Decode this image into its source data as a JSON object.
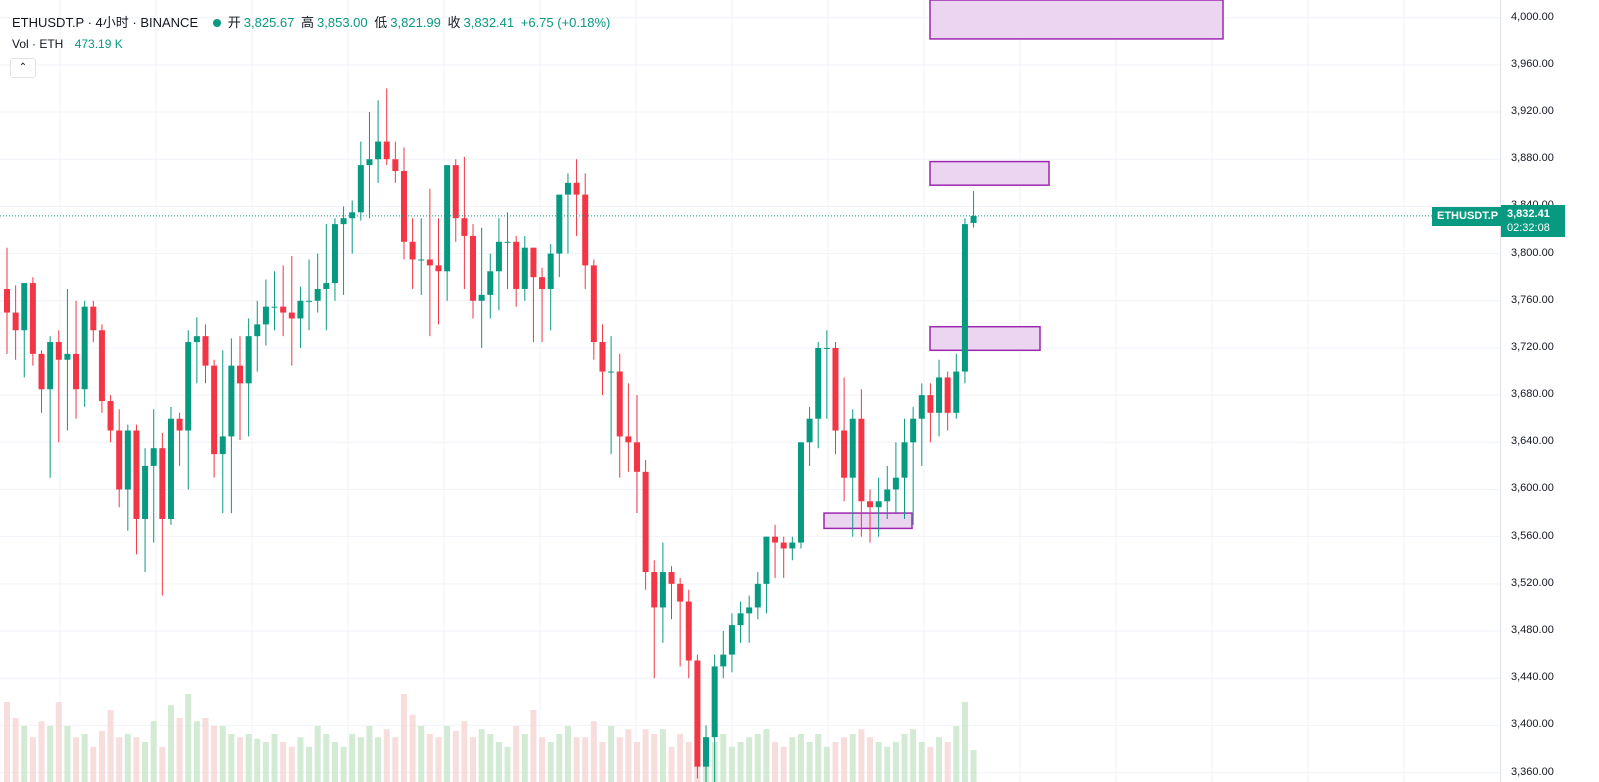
{
  "header": {
    "symbol": "ETHUSDT.P · 4小时 · BINANCE",
    "open_label": "开",
    "open": "3,825.67",
    "high_label": "高",
    "high": "3,853.00",
    "low_label": "低",
    "low": "3,821.99",
    "close_label": "收",
    "close": "3,832.41",
    "change": "+6.75 (+0.18%)"
  },
  "volume": {
    "label": "Vol · ETH",
    "value": "473.19 K"
  },
  "collapse_icon": "chevron-up-icon",
  "price_tag": {
    "symbol": "ETHUSDT.P",
    "price": "3,832.41",
    "countdown": "02:32:08"
  },
  "colors": {
    "up": "#089981",
    "down": "#f23645",
    "vol_up": "#c8e6c9",
    "vol_down": "#f6d5d5",
    "zone_fill": "#ecd5f0",
    "zone_border": "#9c27b0"
  },
  "chart_data": {
    "type": "candlestick",
    "y_axis": {
      "ticks": [
        "4,000.00",
        "3,960.00",
        "3,920.00",
        "3,880.00",
        "3,840.00",
        "3,800.00",
        "3,760.00",
        "3,720.00",
        "3,680.00",
        "3,640.00",
        "3,600.00",
        "3,560.00",
        "3,520.00",
        "3,480.00",
        "3,440.00",
        "3,400.00",
        "3,360.00"
      ],
      "tick_values": [
        4000,
        3960,
        3920,
        3880,
        3840,
        3800,
        3760,
        3720,
        3680,
        3640,
        3600,
        3560,
        3520,
        3480,
        3440,
        3400,
        3360
      ],
      "range": [
        3352,
        4015
      ]
    },
    "candles": [
      {
        "o": 3770,
        "h": 3805,
        "l": 3715,
        "c": 3750,
        "v": 0.5
      },
      {
        "o": 3750,
        "h": 3773,
        "l": 3710,
        "c": 3735,
        "v": 0.4
      },
      {
        "o": 3735,
        "h": 3772,
        "l": 3695,
        "c": 3775,
        "v": 0.35
      },
      {
        "o": 3775,
        "h": 3780,
        "l": 3705,
        "c": 3715,
        "v": 0.28
      },
      {
        "o": 3715,
        "h": 3718,
        "l": 3665,
        "c": 3685,
        "v": 0.38
      },
      {
        "o": 3685,
        "h": 3730,
        "l": 3610,
        "c": 3725,
        "v": 0.35
      },
      {
        "o": 3725,
        "h": 3735,
        "l": 3640,
        "c": 3710,
        "v": 0.5
      },
      {
        "o": 3710,
        "h": 3770,
        "l": 3650,
        "c": 3715,
        "v": 0.35
      },
      {
        "o": 3715,
        "h": 3760,
        "l": 3660,
        "c": 3685,
        "v": 0.28
      },
      {
        "o": 3685,
        "h": 3760,
        "l": 3670,
        "c": 3755,
        "v": 0.3
      },
      {
        "o": 3755,
        "h": 3760,
        "l": 3725,
        "c": 3735,
        "v": 0.22
      },
      {
        "o": 3735,
        "h": 3740,
        "l": 3665,
        "c": 3675,
        "v": 0.32
      },
      {
        "o": 3675,
        "h": 3680,
        "l": 3640,
        "c": 3650,
        "v": 0.45
      },
      {
        "o": 3650,
        "h": 3668,
        "l": 3585,
        "c": 3600,
        "v": 0.28
      },
      {
        "o": 3600,
        "h": 3655,
        "l": 3565,
        "c": 3650,
        "v": 0.3
      },
      {
        "o": 3650,
        "h": 3655,
        "l": 3545,
        "c": 3575,
        "v": 0.28
      },
      {
        "o": 3575,
        "h": 3635,
        "l": 3530,
        "c": 3620,
        "v": 0.25
      },
      {
        "o": 3620,
        "h": 3668,
        "l": 3555,
        "c": 3635,
        "v": 0.38
      },
      {
        "o": 3635,
        "h": 3648,
        "l": 3510,
        "c": 3575,
        "v": 0.22
      },
      {
        "o": 3575,
        "h": 3670,
        "l": 3570,
        "c": 3660,
        "v": 0.48
      },
      {
        "o": 3660,
        "h": 3665,
        "l": 3620,
        "c": 3650,
        "v": 0.4
      },
      {
        "o": 3650,
        "h": 3735,
        "l": 3600,
        "c": 3725,
        "v": 0.55
      },
      {
        "o": 3725,
        "h": 3746,
        "l": 3690,
        "c": 3730,
        "v": 0.38
      },
      {
        "o": 3730,
        "h": 3740,
        "l": 3690,
        "c": 3705,
        "v": 0.4
      },
      {
        "o": 3705,
        "h": 3710,
        "l": 3610,
        "c": 3630,
        "v": 0.35
      },
      {
        "o": 3630,
        "h": 3718,
        "l": 3580,
        "c": 3645,
        "v": 0.35
      },
      {
        "o": 3645,
        "h": 3728,
        "l": 3580,
        "c": 3705,
        "v": 0.3
      },
      {
        "o": 3705,
        "h": 3730,
        "l": 3642,
        "c": 3690,
        "v": 0.28
      },
      {
        "o": 3690,
        "h": 3745,
        "l": 3645,
        "c": 3730,
        "v": 0.3
      },
      {
        "o": 3730,
        "h": 3760,
        "l": 3700,
        "c": 3740,
        "v": 0.27
      },
      {
        "o": 3740,
        "h": 3778,
        "l": 3722,
        "c": 3755,
        "v": 0.25
      },
      {
        "o": 3755,
        "h": 3785,
        "l": 3735,
        "c": 3755,
        "v": 0.3
      },
      {
        "o": 3755,
        "h": 3790,
        "l": 3730,
        "c": 3750,
        "v": 0.25
      },
      {
        "o": 3750,
        "h": 3798,
        "l": 3705,
        "c": 3745,
        "v": 0.22
      },
      {
        "o": 3745,
        "h": 3772,
        "l": 3720,
        "c": 3760,
        "v": 0.28
      },
      {
        "o": 3760,
        "h": 3795,
        "l": 3735,
        "c": 3760,
        "v": 0.22
      },
      {
        "o": 3760,
        "h": 3800,
        "l": 3750,
        "c": 3770,
        "v": 0.35
      },
      {
        "o": 3770,
        "h": 3825,
        "l": 3735,
        "c": 3775,
        "v": 0.3
      },
      {
        "o": 3775,
        "h": 3830,
        "l": 3760,
        "c": 3825,
        "v": 0.25
      },
      {
        "o": 3825,
        "h": 3840,
        "l": 3765,
        "c": 3830,
        "v": 0.22
      },
      {
        "o": 3830,
        "h": 3845,
        "l": 3800,
        "c": 3835,
        "v": 0.3
      },
      {
        "o": 3835,
        "h": 3895,
        "l": 3828,
        "c": 3875,
        "v": 0.28
      },
      {
        "o": 3875,
        "h": 3920,
        "l": 3830,
        "c": 3880,
        "v": 0.35
      },
      {
        "o": 3880,
        "h": 3930,
        "l": 3860,
        "c": 3895,
        "v": 0.28
      },
      {
        "o": 3895,
        "h": 3940,
        "l": 3875,
        "c": 3880,
        "v": 0.33
      },
      {
        "o": 3880,
        "h": 3895,
        "l": 3860,
        "c": 3870,
        "v": 0.28
      },
      {
        "o": 3870,
        "h": 3890,
        "l": 3795,
        "c": 3810,
        "v": 0.55
      },
      {
        "o": 3810,
        "h": 3830,
        "l": 3770,
        "c": 3795,
        "v": 0.42
      },
      {
        "o": 3795,
        "h": 3830,
        "l": 3765,
        "c": 3795,
        "v": 0.35
      },
      {
        "o": 3795,
        "h": 3855,
        "l": 3730,
        "c": 3790,
        "v": 0.3
      },
      {
        "o": 3790,
        "h": 3830,
        "l": 3740,
        "c": 3785,
        "v": 0.28
      },
      {
        "o": 3785,
        "h": 3875,
        "l": 3760,
        "c": 3875,
        "v": 0.35
      },
      {
        "o": 3875,
        "h": 3880,
        "l": 3810,
        "c": 3830,
        "v": 0.32
      },
      {
        "o": 3830,
        "h": 3882,
        "l": 3770,
        "c": 3815,
        "v": 0.38
      },
      {
        "o": 3815,
        "h": 3825,
        "l": 3745,
        "c": 3760,
        "v": 0.28
      },
      {
        "o": 3760,
        "h": 3822,
        "l": 3720,
        "c": 3765,
        "v": 0.33
      },
      {
        "o": 3765,
        "h": 3800,
        "l": 3745,
        "c": 3785,
        "v": 0.3
      },
      {
        "o": 3785,
        "h": 3830,
        "l": 3752,
        "c": 3810,
        "v": 0.25
      },
      {
        "o": 3810,
        "h": 3835,
        "l": 3770,
        "c": 3810,
        "v": 0.22
      },
      {
        "o": 3810,
        "h": 3815,
        "l": 3755,
        "c": 3770,
        "v": 0.35
      },
      {
        "o": 3770,
        "h": 3815,
        "l": 3760,
        "c": 3805,
        "v": 0.3
      },
      {
        "o": 3805,
        "h": 3805,
        "l": 3725,
        "c": 3780,
        "v": 0.45
      },
      {
        "o": 3780,
        "h": 3788,
        "l": 3725,
        "c": 3770,
        "v": 0.28
      },
      {
        "o": 3770,
        "h": 3808,
        "l": 3735,
        "c": 3800,
        "v": 0.25
      },
      {
        "o": 3800,
        "h": 3845,
        "l": 3780,
        "c": 3850,
        "v": 0.3
      },
      {
        "o": 3850,
        "h": 3868,
        "l": 3800,
        "c": 3860,
        "v": 0.35
      },
      {
        "o": 3860,
        "h": 3880,
        "l": 3815,
        "c": 3850,
        "v": 0.28
      },
      {
        "o": 3850,
        "h": 3868,
        "l": 3770,
        "c": 3790,
        "v": 0.28
      },
      {
        "o": 3790,
        "h": 3795,
        "l": 3710,
        "c": 3725,
        "v": 0.38
      },
      {
        "o": 3725,
        "h": 3740,
        "l": 3680,
        "c": 3700,
        "v": 0.25
      },
      {
        "o": 3700,
        "h": 3730,
        "l": 3630,
        "c": 3700,
        "v": 0.35
      },
      {
        "o": 3700,
        "h": 3715,
        "l": 3610,
        "c": 3645,
        "v": 0.28
      },
      {
        "o": 3645,
        "h": 3690,
        "l": 3615,
        "c": 3640,
        "v": 0.33
      },
      {
        "o": 3640,
        "h": 3680,
        "l": 3580,
        "c": 3615,
        "v": 0.25
      },
      {
        "o": 3615,
        "h": 3625,
        "l": 3515,
        "c": 3530,
        "v": 0.33
      },
      {
        "o": 3530,
        "h": 3540,
        "l": 3440,
        "c": 3500,
        "v": 0.3
      },
      {
        "o": 3500,
        "h": 3555,
        "l": 3470,
        "c": 3530,
        "v": 0.33
      },
      {
        "o": 3530,
        "h": 3535,
        "l": 3490,
        "c": 3520,
        "v": 0.22
      },
      {
        "o": 3520,
        "h": 3525,
        "l": 3450,
        "c": 3505,
        "v": 0.3
      },
      {
        "o": 3505,
        "h": 3515,
        "l": 3440,
        "c": 3455,
        "v": 0.25
      },
      {
        "o": 3455,
        "h": 3460,
        "l": 3355,
        "c": 3365,
        "v": 0.28
      },
      {
        "o": 3365,
        "h": 3400,
        "l": 3340,
        "c": 3390,
        "v": 0.22
      },
      {
        "o": 3390,
        "h": 3460,
        "l": 3340,
        "c": 3450,
        "v": 0.25
      },
      {
        "o": 3450,
        "h": 3480,
        "l": 3440,
        "c": 3460,
        "v": 0.3
      },
      {
        "o": 3460,
        "h": 3495,
        "l": 3445,
        "c": 3485,
        "v": 0.22
      },
      {
        "o": 3485,
        "h": 3505,
        "l": 3470,
        "c": 3495,
        "v": 0.25
      },
      {
        "o": 3495,
        "h": 3510,
        "l": 3470,
        "c": 3500,
        "v": 0.28
      },
      {
        "o": 3500,
        "h": 3530,
        "l": 3490,
        "c": 3520,
        "v": 0.3
      },
      {
        "o": 3520,
        "h": 3560,
        "l": 3495,
        "c": 3560,
        "v": 0.33
      },
      {
        "o": 3560,
        "h": 3570,
        "l": 3525,
        "c": 3555,
        "v": 0.25
      },
      {
        "o": 3555,
        "h": 3560,
        "l": 3525,
        "c": 3550,
        "v": 0.22
      },
      {
        "o": 3550,
        "h": 3560,
        "l": 3540,
        "c": 3555,
        "v": 0.28
      },
      {
        "o": 3555,
        "h": 3640,
        "l": 3550,
        "c": 3640,
        "v": 0.3
      },
      {
        "o": 3640,
        "h": 3670,
        "l": 3620,
        "c": 3660,
        "v": 0.25
      },
      {
        "o": 3660,
        "h": 3725,
        "l": 3635,
        "c": 3720,
        "v": 0.3
      },
      {
        "o": 3720,
        "h": 3735,
        "l": 3660,
        "c": 3720,
        "v": 0.22
      },
      {
        "o": 3720,
        "h": 3725,
        "l": 3630,
        "c": 3650,
        "v": 0.25
      },
      {
        "o": 3650,
        "h": 3695,
        "l": 3590,
        "c": 3610,
        "v": 0.28
      },
      {
        "o": 3610,
        "h": 3668,
        "l": 3560,
        "c": 3660,
        "v": 0.3
      },
      {
        "o": 3660,
        "h": 3685,
        "l": 3560,
        "c": 3590,
        "v": 0.33
      },
      {
        "o": 3590,
        "h": 3600,
        "l": 3555,
        "c": 3585,
        "v": 0.28
      },
      {
        "o": 3585,
        "h": 3610,
        "l": 3560,
        "c": 3590,
        "v": 0.25
      },
      {
        "o": 3590,
        "h": 3620,
        "l": 3575,
        "c": 3600,
        "v": 0.22
      },
      {
        "o": 3600,
        "h": 3640,
        "l": 3580,
        "c": 3610,
        "v": 0.25
      },
      {
        "o": 3610,
        "h": 3660,
        "l": 3575,
        "c": 3640,
        "v": 0.3
      },
      {
        "o": 3640,
        "h": 3670,
        "l": 3570,
        "c": 3660,
        "v": 0.33
      },
      {
        "o": 3660,
        "h": 3690,
        "l": 3620,
        "c": 3680,
        "v": 0.25
      },
      {
        "o": 3680,
        "h": 3690,
        "l": 3640,
        "c": 3665,
        "v": 0.22
      },
      {
        "o": 3665,
        "h": 3710,
        "l": 3645,
        "c": 3695,
        "v": 0.28
      },
      {
        "o": 3695,
        "h": 3700,
        "l": 3650,
        "c": 3665,
        "v": 0.25
      },
      {
        "o": 3665,
        "h": 3715,
        "l": 3660,
        "c": 3700,
        "v": 0.35
      },
      {
        "o": 3700,
        "h": 3830,
        "l": 3690,
        "c": 3825,
        "v": 0.5
      },
      {
        "o": 3826,
        "h": 3853,
        "l": 3822,
        "c": 3832,
        "v": 0.2
      }
    ],
    "zones": [
      {
        "top": 4015,
        "bottom": 3982
      },
      {
        "top": 3878,
        "bottom": 3858
      },
      {
        "top": 3738,
        "bottom": 3718
      },
      {
        "top": 3580,
        "bottom": 3567
      }
    ]
  }
}
